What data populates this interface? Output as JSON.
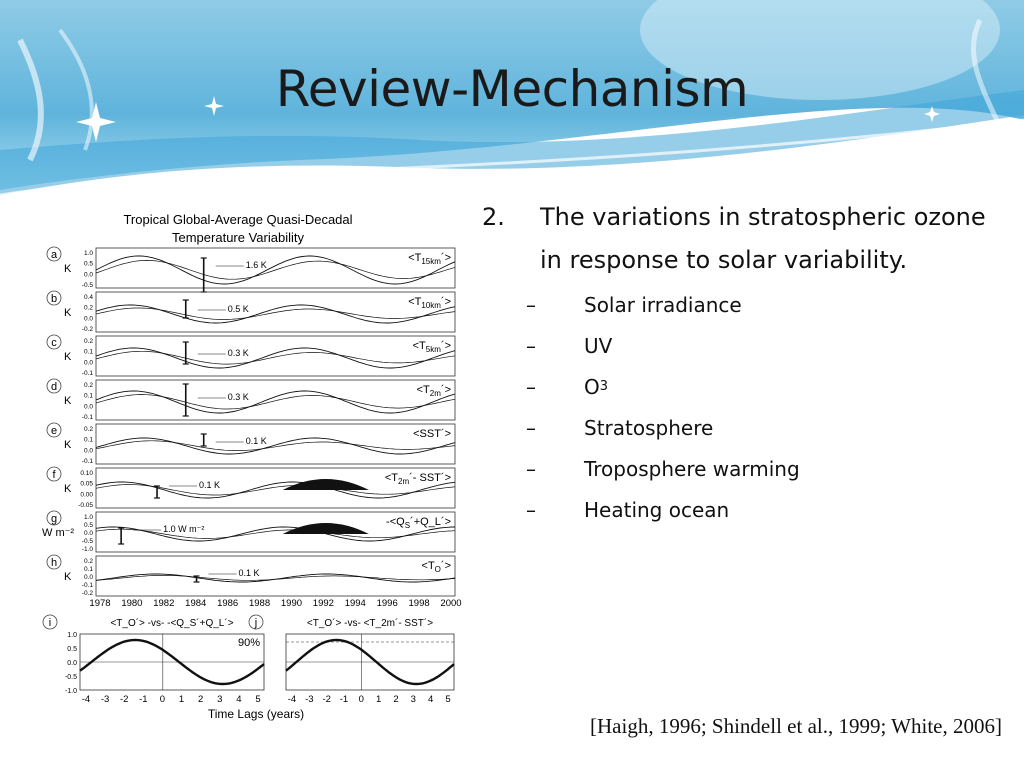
{
  "slide": {
    "title": "Review-Mechanism",
    "colors": {
      "banner_top": "#9fd3ea",
      "banner_mid": "#5fb6dc",
      "title_text": "#1a1a1a"
    }
  },
  "figure": {
    "title_line1": "Tropical Global-Average Quasi-Decadal",
    "title_line2": "Temperature Variability",
    "panels": [
      {
        "letter": "a",
        "unit": "K",
        "ticks": [
          "1.0",
          "0.5",
          "0.0",
          "-0.5"
        ],
        "bar_label": "1.6 K",
        "label_main": "<T",
        "label_sub": "15km",
        "label_end": "´>"
      },
      {
        "letter": "b",
        "unit": "K",
        "ticks": [
          "0.4",
          "0.2",
          "0.0",
          "-0.2"
        ],
        "bar_label": "0.5 K",
        "label_main": "<T",
        "label_sub": "10km",
        "label_end": "´>"
      },
      {
        "letter": "c",
        "unit": "K",
        "ticks": [
          "0.2",
          "0.1",
          "0.0",
          "-0.1"
        ],
        "bar_label": "0.3 K",
        "label_main": "<T",
        "label_sub": "5km",
        "label_end": "´>"
      },
      {
        "letter": "d",
        "unit": "K",
        "ticks": [
          "0.2",
          "0.1",
          "0.0",
          "-0.1"
        ],
        "bar_label": "0.3 K",
        "label_main": "<T",
        "label_sub": "2m",
        "label_end": "´>"
      },
      {
        "letter": "e",
        "unit": "K",
        "ticks": [
          "0.2",
          "0.1",
          "0.0",
          "-0.1"
        ],
        "bar_label": "0.1 K",
        "label_main": "<SST´>",
        "label_sub": "",
        "label_end": ""
      },
      {
        "letter": "f",
        "unit": "K",
        "ticks": [
          "0.10",
          "0.05",
          "0.00",
          "-0.05"
        ],
        "bar_label": "0.1 K",
        "label_main": "<T",
        "label_sub": "2m",
        "label_end": "´- SST´>"
      },
      {
        "letter": "g",
        "unit": "W m⁻²",
        "ticks": [
          "1.0",
          "0.5",
          "0.0",
          "-0.5",
          "-1.0"
        ],
        "bar_label": "1.0 W m⁻²",
        "label_main": "-<Q",
        "label_sub": "S",
        "label_end": "´+Q_L´>"
      },
      {
        "letter": "h",
        "unit": "K",
        "ticks": [
          "0.2",
          "0.1",
          "0.0",
          "-0.1",
          "-0.2"
        ],
        "bar_label": "0.1 K",
        "label_main": "<T",
        "label_sub": "O",
        "label_end": "´>"
      }
    ],
    "year_ticks": [
      "1978",
      "1980",
      "1982",
      "1984",
      "1986",
      "1988",
      "1990",
      "1992",
      "1994",
      "1996",
      "1998",
      "2000"
    ],
    "panel_i": {
      "letter": "i",
      "title": "<T_O´> -vs- -<Q_S´+Q_L´>",
      "percent": "90%",
      "ticks": [
        "1.0",
        "0.5",
        "0.0",
        "-0.5",
        "-1.0"
      ]
    },
    "panel_j": {
      "letter": "j",
      "title": "<T_O´> -vs- <T_2m´- SST´>"
    },
    "lag_ticks": [
      "-4",
      "-3",
      "-2",
      "-1",
      "0",
      "1",
      "2",
      "3",
      "4",
      "5"
    ],
    "lag_xlabel": "Time Lags (years)"
  },
  "bullets": {
    "main_number": "2.",
    "main_text": "The variations in stratospheric ozone in response to solar variability.",
    "sub_items": [
      {
        "dash": "–",
        "text": "Solar irradiance",
        "sub": ""
      },
      {
        "dash": "–",
        "text": "UV",
        "sub": ""
      },
      {
        "dash": "–",
        "text": "O",
        "sub": "3"
      },
      {
        "dash": "–",
        "text": "Stratosphere",
        "sub": ""
      },
      {
        "dash": "–",
        "text": "Troposphere warming",
        "sub": ""
      },
      {
        "dash": "–",
        "text": "Heating ocean",
        "sub": ""
      }
    ]
  },
  "citation": "[Haigh, 1996; Shindell et al., 1999; White, 2006]"
}
